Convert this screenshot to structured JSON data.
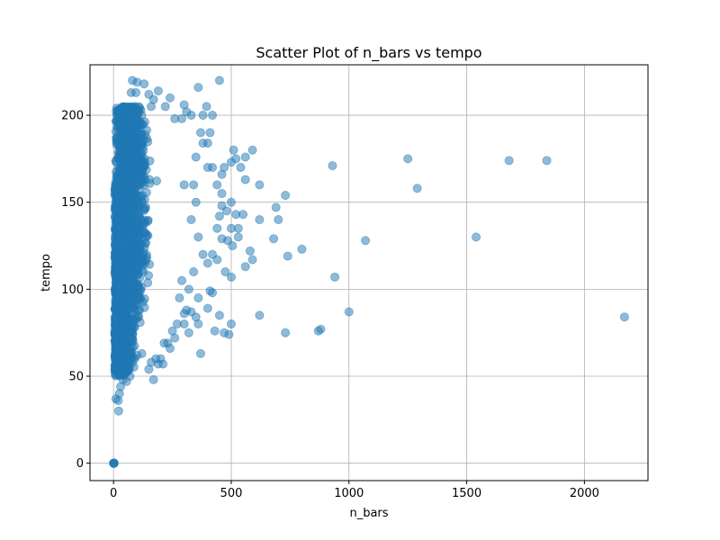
{
  "chart_data": {
    "type": "scatter",
    "title": "Scatter Plot of n_bars vs tempo",
    "xlabel": "n_bars",
    "ylabel": "tempo",
    "xlim": [
      -100,
      2270
    ],
    "ylim": [
      -10,
      229
    ],
    "xticks": [
      0,
      500,
      1000,
      1500,
      2000
    ],
    "yticks": [
      0,
      50,
      100,
      150,
      200
    ],
    "grid": true,
    "marker_color": "#1f77b4",
    "marker_alpha": 0.5,
    "series": [
      {
        "points": [
          [
            0,
            0
          ],
          [
            1,
            0
          ],
          [
            2,
            0
          ],
          [
            0,
            0
          ],
          [
            3,
            0
          ],
          [
            10,
            37
          ],
          [
            20,
            36
          ],
          [
            22,
            30
          ],
          [
            25,
            40
          ],
          [
            30,
            44
          ],
          [
            40,
            48
          ],
          [
            50,
            52
          ],
          [
            55,
            47
          ],
          [
            60,
            55
          ],
          [
            70,
            50
          ],
          [
            80,
            58
          ],
          [
            90,
            60
          ],
          [
            100,
            62
          ],
          [
            120,
            63
          ],
          [
            150,
            54
          ],
          [
            160,
            58
          ],
          [
            170,
            48
          ],
          [
            180,
            60
          ],
          [
            190,
            57
          ],
          [
            200,
            60
          ],
          [
            210,
            57
          ],
          [
            215,
            69
          ],
          [
            230,
            69
          ],
          [
            240,
            66
          ],
          [
            260,
            72
          ],
          [
            250,
            76
          ],
          [
            270,
            80
          ],
          [
            300,
            80
          ],
          [
            320,
            75
          ],
          [
            310,
            88
          ],
          [
            330,
            87
          ],
          [
            370,
            63
          ],
          [
            360,
            80
          ],
          [
            400,
            89
          ],
          [
            410,
            99
          ],
          [
            420,
            98
          ],
          [
            430,
            76
          ],
          [
            450,
            85
          ],
          [
            470,
            75
          ],
          [
            490,
            74
          ],
          [
            500,
            80
          ],
          [
            500,
            107
          ],
          [
            475,
            110
          ],
          [
            440,
            117
          ],
          [
            420,
            120
          ],
          [
            400,
            115
          ],
          [
            460,
            129
          ],
          [
            440,
            135
          ],
          [
            485,
            128
          ],
          [
            505,
            125
          ],
          [
            530,
            130
          ],
          [
            560,
            113
          ],
          [
            580,
            122
          ],
          [
            590,
            117
          ],
          [
            620,
            85
          ],
          [
            680,
            129
          ],
          [
            740,
            119
          ],
          [
            730,
            75
          ],
          [
            870,
            76
          ],
          [
            880,
            77
          ],
          [
            800,
            123
          ],
          [
            940,
            107
          ],
          [
            1000,
            87
          ],
          [
            1070,
            128
          ],
          [
            1540,
            130
          ],
          [
            2170,
            84
          ],
          [
            1290,
            158
          ],
          [
            1250,
            175
          ],
          [
            1680,
            174
          ],
          [
            1840,
            174
          ],
          [
            930,
            171
          ],
          [
            730,
            154
          ],
          [
            690,
            147
          ],
          [
            700,
            140
          ],
          [
            620,
            160
          ],
          [
            620,
            140
          ],
          [
            560,
            163
          ],
          [
            540,
            170
          ],
          [
            560,
            176
          ],
          [
            590,
            180
          ],
          [
            520,
            175
          ],
          [
            510,
            180
          ],
          [
            500,
            173
          ],
          [
            470,
            170
          ],
          [
            460,
            166
          ],
          [
            460,
            155
          ],
          [
            460,
            148
          ],
          [
            450,
            142
          ],
          [
            480,
            145
          ],
          [
            500,
            150
          ],
          [
            520,
            143
          ],
          [
            550,
            143
          ],
          [
            530,
            135
          ],
          [
            500,
            135
          ],
          [
            440,
            160
          ],
          [
            420,
            170
          ],
          [
            400,
            170
          ],
          [
            400,
            184
          ],
          [
            380,
            200
          ],
          [
            420,
            200
          ],
          [
            395,
            205
          ],
          [
            410,
            190
          ],
          [
            360,
            216
          ],
          [
            450,
            220
          ],
          [
            370,
            190
          ],
          [
            380,
            184
          ],
          [
            330,
            200
          ],
          [
            310,
            202
          ],
          [
            300,
            206
          ],
          [
            290,
            198
          ],
          [
            350,
            176
          ],
          [
            340,
            160
          ],
          [
            300,
            160
          ],
          [
            350,
            150
          ],
          [
            330,
            140
          ],
          [
            360,
            130
          ],
          [
            380,
            120
          ],
          [
            340,
            110
          ],
          [
            320,
            100
          ],
          [
            290,
            105
          ],
          [
            280,
            95
          ],
          [
            360,
            95
          ],
          [
            350,
            84
          ],
          [
            300,
            86
          ],
          [
            80,
            220
          ],
          [
            100,
            219
          ],
          [
            130,
            218
          ],
          [
            75,
            213
          ],
          [
            95,
            213
          ],
          [
            150,
            212
          ],
          [
            190,
            214
          ],
          [
            170,
            209
          ],
          [
            160,
            205
          ],
          [
            220,
            205
          ],
          [
            260,
            198
          ],
          [
            240,
            210
          ],
          [
            60,
            200
          ],
          [
            90,
            205
          ],
          [
            120,
            200
          ],
          [
            45,
            203
          ]
        ]
      }
    ]
  }
}
